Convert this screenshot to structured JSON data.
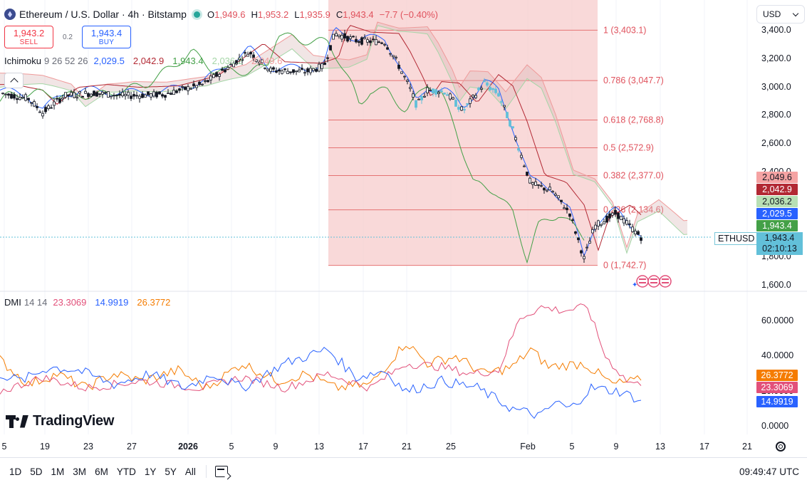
{
  "header": {
    "title": "Ethereum / U.S. Dollar · 4h · Bitstamp",
    "ohlc": [
      {
        "k": "O",
        "v": "1,949.6"
      },
      {
        "k": "H",
        "v": "1,953.2"
      },
      {
        "k": "L",
        "v": "1,935.9"
      },
      {
        "k": "C",
        "v": "1,943.4"
      }
    ],
    "change": "−7.7 (−0.40%)"
  },
  "trade": {
    "sell_price": "1,943.2",
    "sell_label": "SELL",
    "spread": "0.2",
    "buy_price": "1,943.4",
    "buy_label": "BUY"
  },
  "ichimoku": {
    "name": "Ichimoku",
    "params": "9 26 52 26",
    "values": [
      "2,029.5",
      "2,042.9",
      "1,943.4",
      "2,036.2",
      "2,049.6"
    ],
    "colors": [
      "#2962ff",
      "#b22833",
      "#43a047",
      "#a5d6a7",
      "#ef9a9a"
    ]
  },
  "currency": "USD",
  "price_axis": [
    "3,400.0",
    "3,200.0",
    "3,000.0",
    "2,800.0",
    "2,600.0",
    "2,400.0",
    "1,800.0",
    "1,600.0"
  ],
  "price_badges": [
    {
      "text": "2,049.6",
      "bg": "#f5a3a3",
      "fg": "#131722"
    },
    {
      "text": "2,042.9",
      "bg": "#b22833",
      "fg": "#ffffff"
    },
    {
      "text": "2,036.2",
      "bg": "#b8e0b5",
      "fg": "#131722"
    },
    {
      "text": "2,029.5",
      "bg": "#2962ff",
      "fg": "#ffffff"
    },
    {
      "text": "1,943.4",
      "bg": "#43a047",
      "fg": "#ffffff"
    }
  ],
  "symbol_badge": "ETHUSD",
  "last_price": {
    "price": "1,943.4",
    "countdown": "02:10:13"
  },
  "fib_levels": [
    {
      "ratio": "1",
      "price": "3,403.1",
      "value": 3403.1
    },
    {
      "ratio": "0.786",
      "price": "3,047.7",
      "value": 3047.7
    },
    {
      "ratio": "0.618",
      "price": "2,768.8",
      "value": 2768.8
    },
    {
      "ratio": "0.5",
      "price": "2,572.9",
      "value": 2572.9
    },
    {
      "ratio": "0.382",
      "price": "2,377.0",
      "value": 2377.0
    },
    {
      "ratio": "0.236",
      "price": "2,134.6",
      "value": 2134.6
    },
    {
      "ratio": "0",
      "price": "1,742.7",
      "value": 1742.7
    }
  ],
  "dmi": {
    "name": "DMI",
    "params": "14 14",
    "values": [
      "23.3069",
      "14.9919",
      "26.3772"
    ],
    "colors": [
      "#e2507a",
      "#2962ff",
      "#f57c00"
    ],
    "axis": [
      "60.0000",
      "40.0000",
      "20.0000",
      "0.0000"
    ],
    "badges": [
      {
        "text": "26.3772",
        "bg": "#f57c00",
        "fg": "#ffffff"
      },
      {
        "text": "23.3069",
        "bg": "#e2507a",
        "fg": "#ffffff"
      },
      {
        "text": "14.9919",
        "bg": "#2962ff",
        "fg": "#ffffff"
      }
    ]
  },
  "logo_text": "TradingView",
  "time_axis": [
    {
      "t": "5",
      "bold": false
    },
    {
      "t": "19",
      "bold": false
    },
    {
      "t": "23",
      "bold": false
    },
    {
      "t": "27",
      "bold": false
    },
    {
      "t": "2026",
      "bold": true
    },
    {
      "t": "5",
      "bold": false
    },
    {
      "t": "9",
      "bold": false
    },
    {
      "t": "13",
      "bold": false
    },
    {
      "t": "17",
      "bold": false
    },
    {
      "t": "21",
      "bold": false
    },
    {
      "t": "25",
      "bold": false
    },
    {
      "t": "Feb",
      "bold": false
    },
    {
      "t": "5",
      "bold": false
    },
    {
      "t": "9",
      "bold": false
    },
    {
      "t": "13",
      "bold": false
    },
    {
      "t": "17",
      "bold": false
    },
    {
      "t": "21",
      "bold": false
    }
  ],
  "ranges": [
    "1D",
    "5D",
    "1M",
    "3M",
    "6M",
    "YTD",
    "1Y",
    "5Y",
    "All"
  ],
  "clock": "09:49:47 UTC",
  "colors": {
    "up": "#131722",
    "down": "#131722",
    "fib_fill": "#f7caca",
    "fib_line": "#e57373",
    "fib_text": "#e0525d",
    "accent": "#2962ff"
  }
}
